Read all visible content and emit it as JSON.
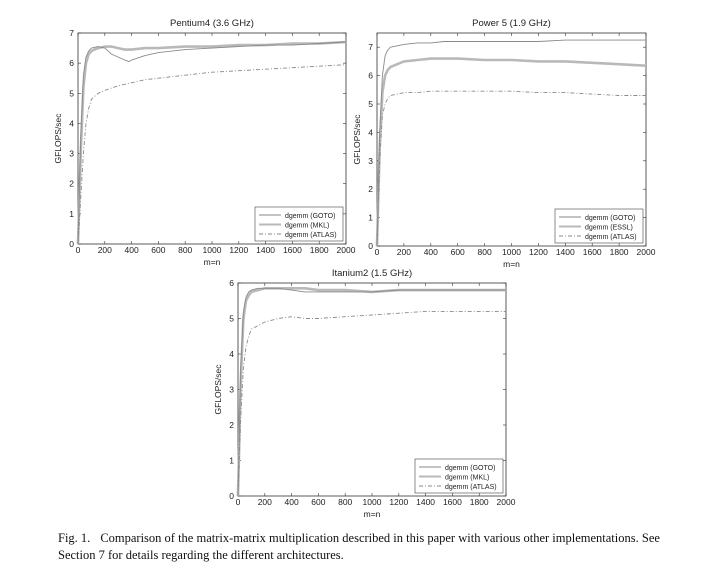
{
  "chart_data": [
    {
      "type": "line",
      "title": "Pentium4 (3.6 GHz)",
      "xlabel": "m=n",
      "ylabel": "GFLOPS/sec",
      "xlim": [
        0,
        2000
      ],
      "ylim": [
        0,
        7
      ],
      "xticks": [
        0,
        200,
        400,
        600,
        800,
        1000,
        1200,
        1400,
        1600,
        1800,
        2000
      ],
      "yticks": [
        0,
        1,
        2,
        3,
        4,
        5,
        6,
        7
      ],
      "legend_position": "bottom-right",
      "series": [
        {
          "name": "dgemm (GOTO)",
          "style": "solid-thin",
          "color": "#8a8a8a",
          "x": [
            0,
            20,
            40,
            60,
            80,
            100,
            150,
            200,
            250,
            300,
            350,
            380,
            400,
            500,
            600,
            800,
            1000,
            1200,
            1400,
            1600,
            1800,
            2000
          ],
          "y": [
            0,
            3.5,
            5.6,
            6.2,
            6.4,
            6.5,
            6.55,
            6.5,
            6.3,
            6.2,
            6.1,
            6.05,
            6.1,
            6.25,
            6.35,
            6.45,
            6.5,
            6.55,
            6.6,
            6.6,
            6.65,
            6.7
          ]
        },
        {
          "name": "dgemm (MKL)",
          "style": "solid-thick",
          "color": "#b9b9b9",
          "x": [
            0,
            20,
            40,
            60,
            80,
            100,
            120,
            150,
            200,
            250,
            300,
            350,
            400,
            500,
            600,
            800,
            1000,
            1200,
            1400,
            1600,
            1800,
            2000
          ],
          "y": [
            0,
            3.0,
            5.2,
            6.0,
            6.3,
            6.4,
            6.45,
            6.5,
            6.55,
            6.55,
            6.5,
            6.45,
            6.45,
            6.5,
            6.5,
            6.55,
            6.55,
            6.6,
            6.6,
            6.65,
            6.65,
            6.7
          ]
        },
        {
          "name": "dgemm (ATLAS)",
          "style": "dashdot",
          "color": "#8a8a8a",
          "x": [
            0,
            20,
            40,
            60,
            80,
            100,
            150,
            200,
            300,
            400,
            500,
            600,
            800,
            1000,
            1200,
            1400,
            1600,
            1800,
            2000
          ],
          "y": [
            0,
            1.5,
            3.0,
            4.0,
            4.5,
            4.8,
            5.0,
            5.1,
            5.25,
            5.35,
            5.45,
            5.5,
            5.6,
            5.7,
            5.75,
            5.8,
            5.85,
            5.9,
            5.95
          ]
        }
      ]
    },
    {
      "type": "line",
      "title": "Power 5 (1.9 GHz)",
      "xlabel": "m=n",
      "ylabel": "GFLOPS/sec",
      "xlim": [
        0,
        2000
      ],
      "ylim": [
        0,
        7.5
      ],
      "xticks": [
        0,
        200,
        400,
        600,
        800,
        1000,
        1200,
        1400,
        1600,
        1800,
        2000
      ],
      "yticks": [
        0,
        1,
        2,
        3,
        4,
        5,
        6,
        7
      ],
      "legend_position": "bottom-right",
      "series": [
        {
          "name": "dgemm (GOTO)",
          "style": "solid-thin",
          "color": "#8a8a8a",
          "x": [
            0,
            20,
            40,
            60,
            80,
            100,
            150,
            200,
            300,
            400,
            500,
            600,
            800,
            1000,
            1200,
            1400,
            1600,
            1800,
            2000
          ],
          "y": [
            0,
            4.0,
            6.0,
            6.7,
            6.9,
            7.0,
            7.05,
            7.1,
            7.15,
            7.15,
            7.2,
            7.2,
            7.2,
            7.2,
            7.2,
            7.25,
            7.25,
            7.25,
            7.25
          ]
        },
        {
          "name": "dgemm (ESSL)",
          "style": "solid-thick",
          "color": "#b9b9b9",
          "x": [
            0,
            20,
            40,
            60,
            80,
            100,
            150,
            200,
            300,
            400,
            500,
            600,
            800,
            1000,
            1200,
            1400,
            1600,
            1800,
            2000
          ],
          "y": [
            0,
            3.5,
            5.4,
            6.0,
            6.2,
            6.3,
            6.4,
            6.5,
            6.55,
            6.6,
            6.6,
            6.6,
            6.55,
            6.55,
            6.5,
            6.5,
            6.45,
            6.4,
            6.35
          ]
        },
        {
          "name": "dgemm (ATLAS)",
          "style": "dashdot",
          "color": "#8a8a8a",
          "x": [
            0,
            20,
            40,
            60,
            80,
            100,
            150,
            200,
            300,
            400,
            500,
            600,
            800,
            1000,
            1200,
            1400,
            1600,
            1800,
            2000
          ],
          "y": [
            0,
            3.0,
            4.6,
            5.0,
            5.2,
            5.3,
            5.35,
            5.4,
            5.4,
            5.45,
            5.45,
            5.45,
            5.45,
            5.45,
            5.4,
            5.4,
            5.35,
            5.3,
            5.3
          ]
        }
      ]
    },
    {
      "type": "line",
      "title": "Itanium2 (1.5 GHz)",
      "xlabel": "m=n",
      "ylabel": "GFLOPS/sec",
      "xlim": [
        0,
        2000
      ],
      "ylim": [
        0,
        6
      ],
      "xticks": [
        0,
        200,
        400,
        600,
        800,
        1000,
        1200,
        1400,
        1600,
        1800,
        2000
      ],
      "yticks": [
        0,
        1,
        2,
        3,
        4,
        5,
        6
      ],
      "legend_position": "bottom-right",
      "series": [
        {
          "name": "dgemm (GOTO)",
          "style": "solid-thin",
          "color": "#8a8a8a",
          "x": [
            0,
            20,
            40,
            60,
            80,
            100,
            150,
            200,
            300,
            400,
            500,
            600,
            800,
            1000,
            1200,
            1400,
            1600,
            1800,
            2000
          ],
          "y": [
            0,
            3.6,
            5.2,
            5.6,
            5.75,
            5.8,
            5.85,
            5.85,
            5.85,
            5.8,
            5.75,
            5.75,
            5.75,
            5.75,
            5.8,
            5.8,
            5.8,
            5.8,
            5.8
          ]
        },
        {
          "name": "dgemm (MKL)",
          "style": "solid-thick",
          "color": "#b9b9b9",
          "x": [
            0,
            20,
            40,
            60,
            80,
            100,
            150,
            200,
            300,
            400,
            500,
            600,
            800,
            1000,
            1200,
            1400,
            1600,
            1800,
            2000
          ],
          "y": [
            0,
            3.2,
            5.0,
            5.5,
            5.65,
            5.75,
            5.8,
            5.85,
            5.85,
            5.85,
            5.85,
            5.8,
            5.8,
            5.75,
            5.8,
            5.8,
            5.8,
            5.8,
            5.8
          ]
        },
        {
          "name": "dgemm (ATLAS)",
          "style": "dashdot",
          "color": "#8a8a8a",
          "x": [
            0,
            20,
            40,
            60,
            80,
            100,
            150,
            200,
            300,
            400,
            500,
            600,
            800,
            1000,
            1200,
            1400,
            1600,
            1800,
            2000
          ],
          "y": [
            0,
            2.2,
            3.6,
            4.2,
            4.5,
            4.7,
            4.8,
            4.9,
            5.0,
            5.05,
            5.0,
            5.0,
            5.05,
            5.1,
            5.15,
            5.2,
            5.2,
            5.2,
            5.2
          ]
        }
      ]
    }
  ],
  "caption": {
    "label": "Fig. 1.",
    "text": "Comparison of the matrix-matrix multiplication described in this paper with various other implementations. See Section 7 for details regarding the different architectures."
  }
}
